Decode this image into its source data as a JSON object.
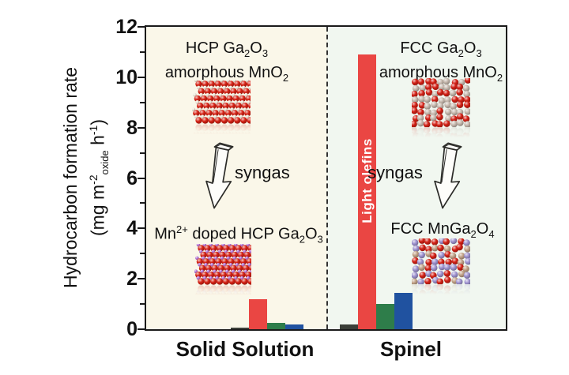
{
  "chart_data": {
    "type": "bar",
    "title": "",
    "ylabel": "Hydrocarbon formation rate (mg m-2_oxide h-1)",
    "xlabel": "",
    "ylim": [
      0,
      12
    ],
    "yticks": [
      0,
      2,
      4,
      6,
      8,
      10,
      12
    ],
    "yticks_minor": [
      1,
      3,
      5,
      7,
      9,
      11
    ],
    "categories": [
      "Solid Solution",
      "Spinel"
    ],
    "series": [
      {
        "name": "bar-dark",
        "color": "#3b3f38",
        "values": [
          0.05,
          0.2
        ]
      },
      {
        "name": "bar-red",
        "color": "#ea4643",
        "values": [
          1.2,
          10.9
        ]
      },
      {
        "name": "bar-green",
        "color": "#2e7d4a",
        "values": [
          0.25,
          1.0
        ]
      },
      {
        "name": "bar-blue",
        "color": "#2052a0",
        "values": [
          0.2,
          1.45
        ]
      }
    ],
    "bar_label": {
      "text": "Light olefins",
      "series_index": 1,
      "category_index": 1,
      "color": "#ffffff"
    },
    "legend": "none",
    "grid": false
  },
  "axis": {
    "y_title_line1": "Hydrocarbon formation rate",
    "y_title_line2": {
      "p1": "(mg m",
      "sup1": "-2",
      "sub1": "oxide",
      "p2": " h",
      "sup2": "-1",
      "p3": ")"
    }
  },
  "annotations": {
    "left_top_1": {
      "a": "HCP Ga",
      "b": "2",
      "c": "O",
      "d": "3"
    },
    "left_top_2": {
      "a": "amorphous MnO",
      "b": "2"
    },
    "left_syngas": "syngas",
    "left_mid": {
      "a": "Mn",
      "b": "2+",
      "c": " doped HCP Ga",
      "d": "2",
      "e": "O",
      "f": "3"
    },
    "right_top_1": {
      "a": "FCC Ga",
      "b": "2",
      "c": "O",
      "d": "3"
    },
    "right_top_2": {
      "a": "amorphous MnO",
      "b": "2"
    },
    "right_syngas": "syngas",
    "right_mid": {
      "a": "FCC MnGa",
      "b": "2",
      "c": "O",
      "d": "4"
    }
  },
  "crystals": [
    {
      "id": "crystal-hcp-ga2o3-amorphous-mno2",
      "type": "ordered",
      "main": "#d62114",
      "accent": "#efe9da"
    },
    {
      "id": "crystal-mn-doped-hcp-ga2o3",
      "type": "ordered",
      "main": "#d62114",
      "accent": "#b273d6"
    },
    {
      "id": "crystal-fcc-ga2o3-amorphous-mno2",
      "type": "random",
      "colors": [
        "#d32015",
        "#c7b9ae"
      ],
      "weights": [
        0.6,
        0.4
      ]
    },
    {
      "id": "crystal-fcc-mnga2o4",
      "type": "random",
      "colors": [
        "#d32015",
        "#9f93d0",
        "#c2a288"
      ],
      "weights": [
        0.45,
        0.35,
        0.2
      ]
    }
  ],
  "colors": {
    "plot_bg_left": "#faf7e9",
    "plot_bg_right": "#f1f7f0",
    "axis": "#1a1a1a",
    "divider": "#333333"
  }
}
